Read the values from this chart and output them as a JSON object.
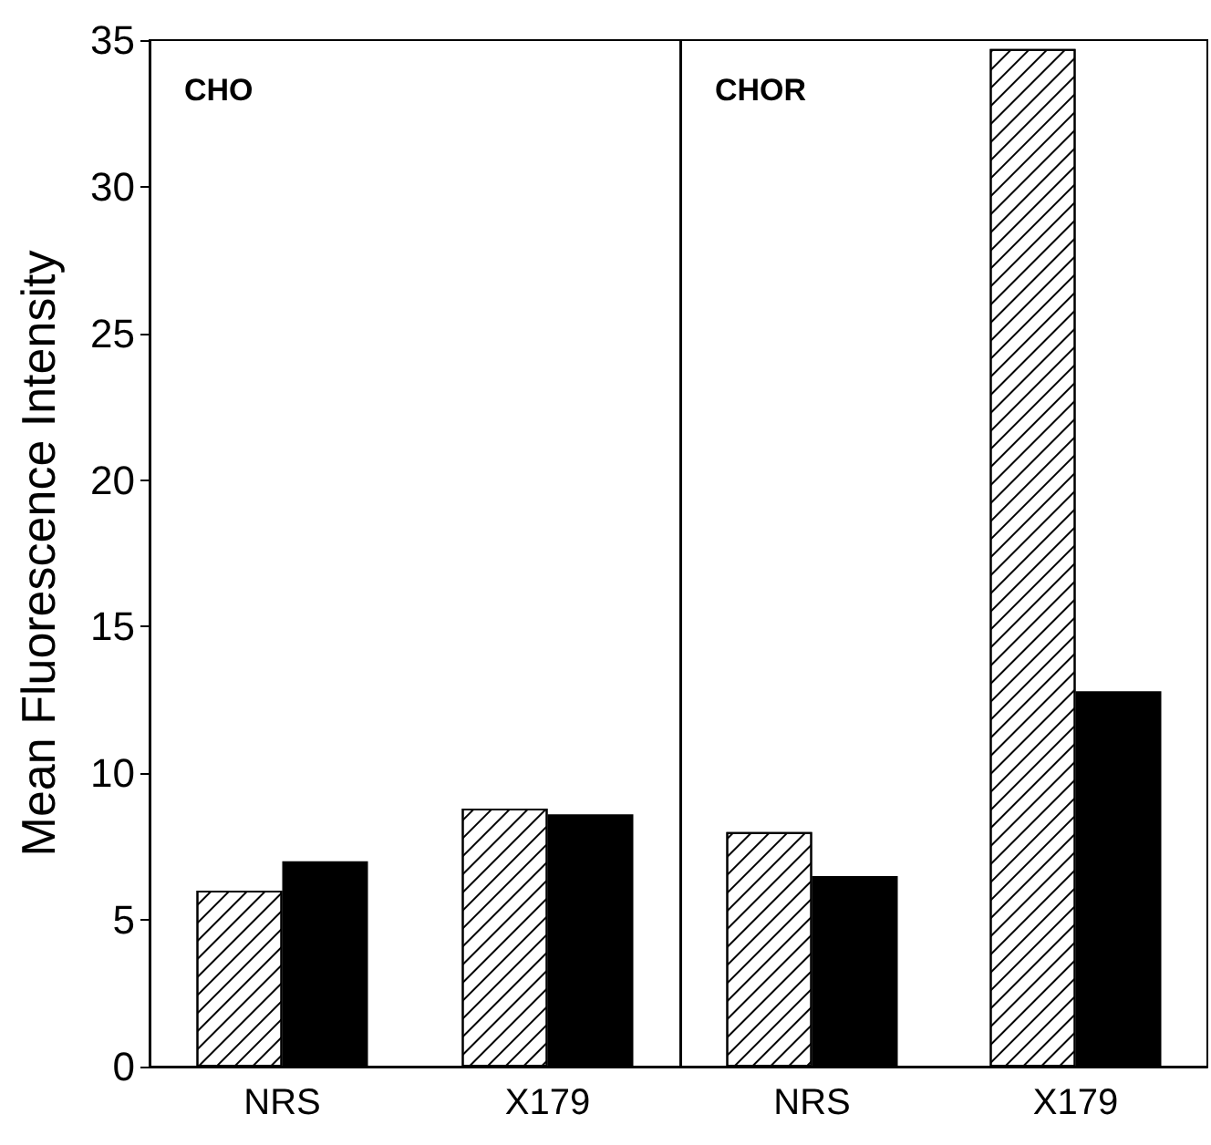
{
  "chart_data": [
    {
      "type": "bar",
      "title": "CHO",
      "ylabel": "Mean Fluorescence Intensity",
      "categories": [
        "NRS",
        "X179"
      ],
      "ylim": [
        0,
        35
      ],
      "yticks": [
        0,
        5,
        10,
        15,
        20,
        25,
        30,
        35
      ],
      "series": [
        {
          "color": "#ffffff",
          "values": [
            6.0,
            8.8
          ]
        },
        {
          "color": "#000000",
          "values": [
            7.0,
            8.6
          ]
        }
      ]
    },
    {
      "type": "bar",
      "title": "CHOR",
      "categories": [
        "NRS",
        "X179"
      ],
      "ylim": [
        0,
        35
      ],
      "yticks": [
        0,
        5,
        10,
        15,
        20,
        25,
        30,
        35
      ],
      "tick_labels": "x",
      "series": [
        {
          "color": "#ffffff",
          "values": [
            8.0,
            34.7
          ]
        },
        {
          "color": "#000000",
          "values": [
            6.5,
            12.8
          ]
        }
      ]
    }
  ]
}
